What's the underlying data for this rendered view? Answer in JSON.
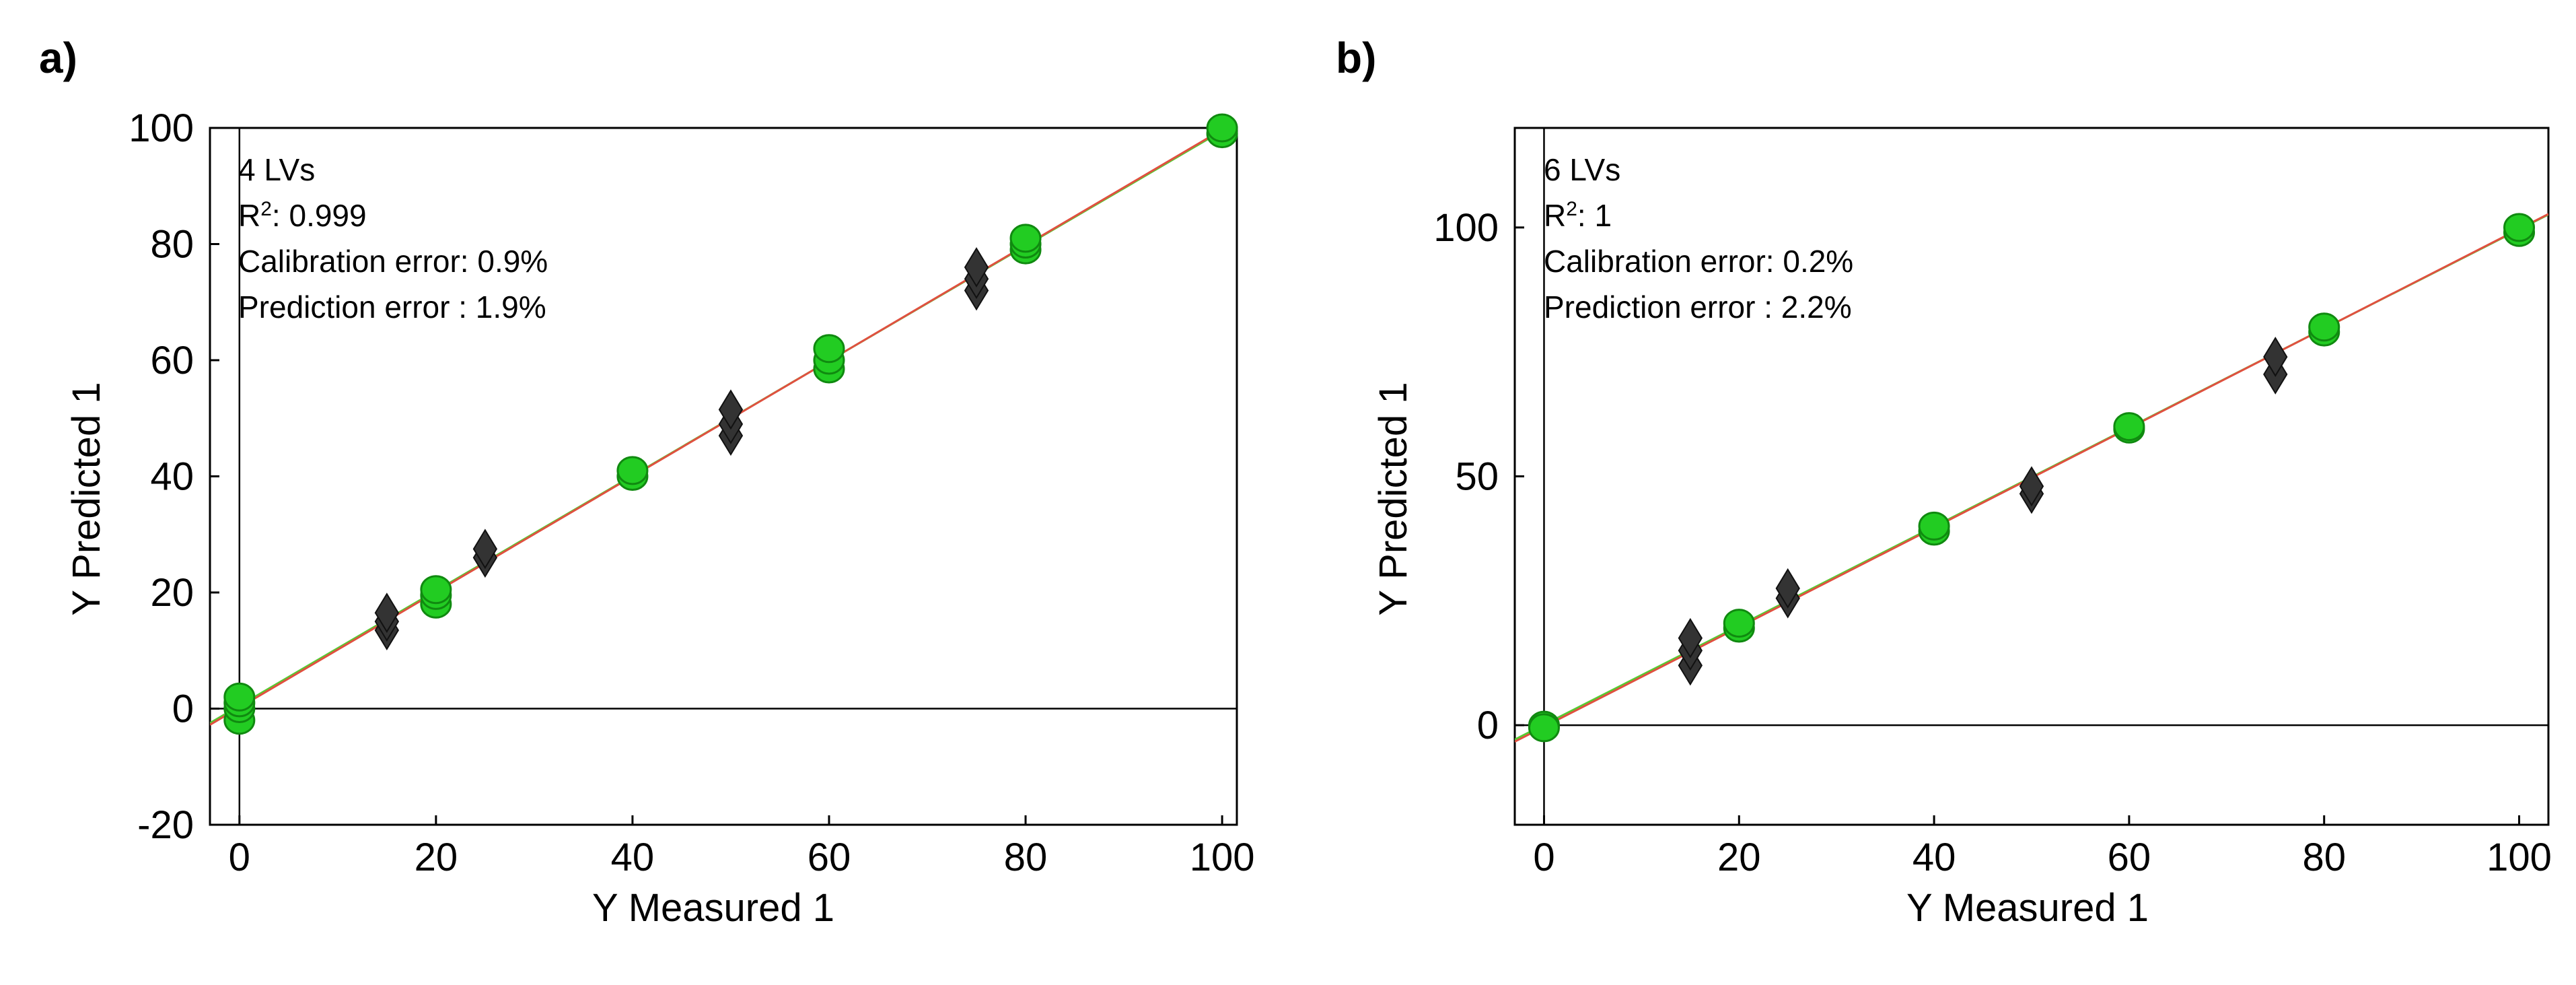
{
  "colors": {
    "calibration_marker": "#22cc22",
    "calibration_edge": "#108a10",
    "validation_marker": "#333333",
    "validation_edge": "#111111",
    "fit_line_green": "#55cc33",
    "fit_line_red": "#e05040",
    "axis": "#000000"
  },
  "icons": {
    "calibration_marker": "circle",
    "validation_marker": "diamond"
  },
  "chart_data": [
    {
      "panel_label": "a)",
      "type": "scatter",
      "xlabel": "Y Measured 1",
      "ylabel": "Y Predicted 1",
      "xlim": [
        -3,
        101.5
      ],
      "ylim": [
        -20,
        100
      ],
      "xticks": [
        0,
        20,
        40,
        60,
        80,
        100
      ],
      "yticks": [
        -20,
        0,
        20,
        40,
        60,
        80,
        100
      ],
      "annotation": {
        "lvs": "4 LVs",
        "r2_prefix": "R",
        "r2_sup": "2",
        "r2_value": ": 0.999",
        "calibration_error": "Calibration error: 0.9%",
        "prediction_error": "Prediction error : 1.9%"
      },
      "fit_lines": [
        {
          "name": "green",
          "intercept": 0.5,
          "slope": 0.99
        },
        {
          "name": "red",
          "intercept": 0.2,
          "slope": 0.995
        }
      ],
      "series": [
        {
          "name": "calibration",
          "marker": "circle",
          "points": [
            [
              0,
              -2
            ],
            [
              0,
              0
            ],
            [
              0,
              1
            ],
            [
              0,
              2
            ],
            [
              20,
              18
            ],
            [
              20,
              19.5
            ],
            [
              20,
              20.5
            ],
            [
              40,
              40
            ],
            [
              40,
              41
            ],
            [
              60,
              58.5
            ],
            [
              60,
              60
            ],
            [
              60,
              62
            ],
            [
              80,
              79
            ],
            [
              80,
              80
            ],
            [
              80,
              81
            ],
            [
              100,
              99
            ],
            [
              100,
              100
            ]
          ]
        },
        {
          "name": "validation",
          "marker": "diamond",
          "points": [
            [
              15,
              13.5
            ],
            [
              15,
              15
            ],
            [
              15,
              16.5
            ],
            [
              25,
              26
            ],
            [
              25,
              27.5
            ],
            [
              50,
              47
            ],
            [
              50,
              49
            ],
            [
              50,
              51.5
            ],
            [
              75,
              72
            ],
            [
              75,
              74
            ],
            [
              75,
              76
            ]
          ]
        }
      ]
    },
    {
      "panel_label": "b)",
      "type": "scatter",
      "xlabel": "Y Measured 1",
      "ylabel": "Y Predicted 1",
      "xlim": [
        -3,
        103
      ],
      "ylim": [
        -20,
        120
      ],
      "xticks": [
        0,
        20,
        40,
        60,
        80,
        100
      ],
      "yticks": [
        0,
        50,
        100
      ],
      "annotation": {
        "lvs": "6 LVs",
        "r2_prefix": "R",
        "r2_sup": "2",
        "r2_value": ": 1",
        "calibration_error": "Calibration error: 0.2%",
        "prediction_error": "Prediction error : 2.2%"
      },
      "fit_lines": [
        {
          "name": "green",
          "intercept": 0.1,
          "slope": 0.995
        },
        {
          "name": "red",
          "intercept": -0.3,
          "slope": 1.0
        }
      ],
      "series": [
        {
          "name": "calibration",
          "marker": "circle",
          "points": [
            [
              0,
              0
            ],
            [
              0,
              -0.5
            ],
            [
              20,
              19.5
            ],
            [
              20,
              20.5
            ],
            [
              40,
              39
            ],
            [
              40,
              40
            ],
            [
              60,
              59.5
            ],
            [
              60,
              60
            ],
            [
              80,
              79
            ],
            [
              80,
              80
            ],
            [
              100,
              99
            ],
            [
              100,
              100
            ]
          ]
        },
        {
          "name": "validation",
          "marker": "diamond",
          "points": [
            [
              15,
              12
            ],
            [
              15,
              15
            ],
            [
              15,
              17.5
            ],
            [
              25,
              25.5
            ],
            [
              25,
              27.5
            ],
            [
              50,
              46.5
            ],
            [
              50,
              48
            ],
            [
              75,
              70.5
            ],
            [
              75,
              74
            ]
          ]
        }
      ]
    }
  ]
}
